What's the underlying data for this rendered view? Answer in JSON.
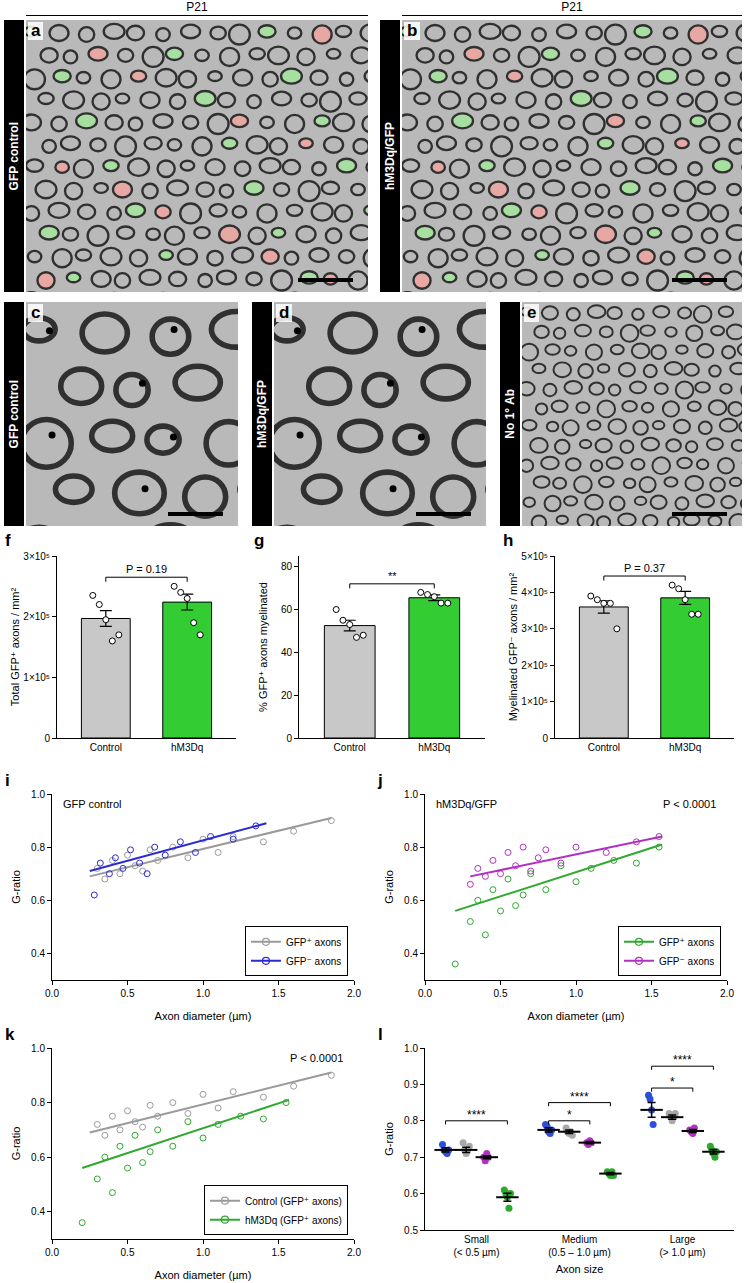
{
  "images": [
    {
      "label": "a",
      "header": "P21",
      "condition": "GFP control"
    },
    {
      "label": "b",
      "header": "P21",
      "condition": "hM3Dq/GFP"
    },
    {
      "label": "c",
      "condition": "GFP control"
    },
    {
      "label": "d",
      "condition": "hM3Dq/GFP"
    },
    {
      "label": "e",
      "condition": "No 1° Ab"
    }
  ],
  "chart_data": [
    {
      "label": "f",
      "type": "bar",
      "categories": [
        "Control",
        "hM3Dq"
      ],
      "values": [
        197000,
        224000
      ],
      "errors": [
        13000,
        13000
      ],
      "colors": [
        "#c8c8c8",
        "#33cc33"
      ],
      "points": [
        [
          235000,
          220000,
          195000,
          160000,
          170000
        ],
        [
          250000,
          240000,
          230000,
          190000,
          170000
        ]
      ],
      "y_label": "Total GFP⁺ axons / mm²",
      "ylim": [
        0,
        300000
      ],
      "yticks": [
        0,
        {
          "value": 100000,
          "label": "1×10⁵"
        },
        {
          "value": 200000,
          "label": "2×10⁵"
        },
        {
          "value": 300000,
          "label": "3×10⁵"
        }
      ],
      "annotations": [
        {
          "text": "P = 0.19",
          "y": 265000
        }
      ],
      "grid": false
    },
    {
      "label": "g",
      "type": "bar",
      "categories": [
        "Control",
        "hM3Dq"
      ],
      "values": [
        52.5,
        65.5
      ],
      "errors": [
        2.5,
        1.3
      ],
      "colors": [
        "#c8c8c8",
        "#33cc33"
      ],
      "points": [
        [
          60,
          55,
          53,
          47,
          48
        ],
        [
          68,
          67,
          66,
          63,
          63
        ]
      ],
      "y_label": "% GFP⁺ axons myelinated",
      "ylim": [
        0,
        85
      ],
      "yticks": [
        0,
        20,
        40,
        60,
        80
      ],
      "annotations": [
        {
          "text": "**",
          "y": 72
        }
      ],
      "grid": false
    },
    {
      "label": "h",
      "type": "bar",
      "categories": [
        "Control",
        "hM3Dq"
      ],
      "values": [
        360000,
        385000
      ],
      "errors": [
        17000,
        18000
      ],
      "colors": [
        "#c8c8c8",
        "#33cc33"
      ],
      "points": [
        [
          390000,
          380000,
          370000,
          370000,
          300000
        ],
        [
          420000,
          410000,
          380000,
          340000,
          340000
        ]
      ],
      "y_label": "Myelinated GFP⁻ axons / mm²",
      "ylim": [
        0,
        500000
      ],
      "yticks": [
        0,
        {
          "value": 100000,
          "label": "1×10⁵"
        },
        {
          "value": 200000,
          "label": "2×10⁵"
        },
        {
          "value": 300000,
          "label": "3×10⁵"
        },
        {
          "value": 400000,
          "label": "4×10⁵"
        },
        {
          "value": 500000,
          "label": "5×10⁵"
        }
      ],
      "annotations": [
        {
          "text": "P = 0.37",
          "y": 445000
        }
      ],
      "grid": false
    },
    {
      "label": "i",
      "type": "scatter",
      "title": "GFP control",
      "legend": "lower right",
      "marker": "circle-open",
      "x_label": "Axon diameter (µm)",
      "y_label": "G-ratio",
      "xlim": [
        0,
        2
      ],
      "xticks": [
        {
          "value": 0,
          "label": "0.0"
        },
        0.5,
        {
          "value": 1,
          "label": "1.0"
        },
        1.5,
        {
          "value": 2,
          "label": "2.0"
        }
      ],
      "ylim": [
        0.3,
        1.0
      ],
      "yticks": [
        0.4,
        0.6,
        0.8,
        {
          "value": 1,
          "label": "1.0"
        }
      ],
      "series": [
        {
          "name": "GFP⁺ axons",
          "color": "#9a9a9a",
          "x": [
            0.3,
            0.35,
            0.4,
            0.45,
            0.5,
            0.55,
            0.6,
            0.65,
            0.7,
            0.8,
            0.9,
            1.0,
            1.1,
            1.2,
            1.4,
            1.6,
            1.85
          ],
          "y": [
            0.72,
            0.68,
            0.75,
            0.7,
            0.77,
            0.73,
            0.71,
            0.79,
            0.75,
            0.8,
            0.76,
            0.83,
            0.78,
            0.84,
            0.82,
            0.86,
            0.9
          ],
          "fit": {
            "x": [
              0.25,
              1.85
            ],
            "y": [
              0.69,
              0.91
            ]
          }
        },
        {
          "name": "GFP⁻ axons",
          "color": "#2b2bd0",
          "x": [
            0.28,
            0.32,
            0.38,
            0.42,
            0.47,
            0.52,
            0.58,
            0.63,
            0.68,
            0.75,
            0.85,
            0.95,
            1.05,
            1.2,
            1.35
          ],
          "y": [
            0.62,
            0.74,
            0.7,
            0.76,
            0.72,
            0.79,
            0.74,
            0.7,
            0.8,
            0.77,
            0.82,
            0.78,
            0.84,
            0.83,
            0.88
          ],
          "fit": {
            "x": [
              0.25,
              1.42
            ],
            "y": [
              0.71,
              0.89
            ]
          }
        }
      ],
      "grid": false
    },
    {
      "label": "j",
      "type": "scatter",
      "title": "hM3Dq/GFP",
      "annotation": "P < 0.0001",
      "legend": "lower right",
      "marker": "circle-open",
      "x_label": "Axon diameter (µm)",
      "y_label": "G-ratio",
      "xlim": [
        0,
        2
      ],
      "xticks": [
        {
          "value": 0,
          "label": "0.0"
        },
        0.5,
        {
          "value": 1,
          "label": "1.0"
        },
        1.5,
        {
          "value": 2,
          "label": "2.0"
        }
      ],
      "ylim": [
        0.3,
        1.0
      ],
      "yticks": [
        0.4,
        0.6,
        0.8,
        {
          "value": 1,
          "label": "1.0"
        }
      ],
      "series": [
        {
          "name": "GFP⁺ axons",
          "color": "#2ea82e",
          "x": [
            0.2,
            0.3,
            0.35,
            0.4,
            0.45,
            0.5,
            0.55,
            0.6,
            0.65,
            0.7,
            0.8,
            0.9,
            1.0,
            1.1,
            1.25,
            1.4,
            1.55
          ],
          "y": [
            0.36,
            0.52,
            0.6,
            0.47,
            0.64,
            0.56,
            0.68,
            0.58,
            0.62,
            0.7,
            0.64,
            0.73,
            0.67,
            0.72,
            0.75,
            0.74,
            0.8
          ],
          "fit": {
            "x": [
              0.2,
              1.57
            ],
            "y": [
              0.56,
              0.81
            ]
          }
        },
        {
          "name": "GFP⁻ axons",
          "color": "#b030c0",
          "x": [
            0.3,
            0.35,
            0.4,
            0.45,
            0.5,
            0.55,
            0.6,
            0.65,
            0.7,
            0.75,
            0.8,
            0.9,
            1.0,
            1.2,
            1.4,
            1.55
          ],
          "y": [
            0.66,
            0.72,
            0.69,
            0.75,
            0.7,
            0.78,
            0.73,
            0.8,
            0.71,
            0.76,
            0.79,
            0.74,
            0.8,
            0.78,
            0.82,
            0.84
          ],
          "fit": {
            "x": [
              0.3,
              1.57
            ],
            "y": [
              0.69,
              0.84
            ]
          }
        }
      ],
      "grid": false
    },
    {
      "label": "k",
      "type": "scatter",
      "annotation": "P < 0.0001",
      "legend": "lower right",
      "marker": "circle-open",
      "x_label": "Axon diameter (µm)",
      "y_label": "G-ratio",
      "xlim": [
        0,
        2
      ],
      "xticks": [
        {
          "value": 0,
          "label": "0.0"
        },
        0.5,
        {
          "value": 1,
          "label": "1.0"
        },
        1.5,
        {
          "value": 2,
          "label": "2.0"
        }
      ],
      "ylim": [
        0.3,
        1.0
      ],
      "yticks": [
        0.4,
        0.6,
        0.8,
        {
          "value": 1,
          "label": "1.0"
        }
      ],
      "series": [
        {
          "name": "Control (GFP⁺ axons)",
          "color": "#9a9a9a",
          "x": [
            0.3,
            0.35,
            0.4,
            0.45,
            0.5,
            0.55,
            0.6,
            0.65,
            0.7,
            0.8,
            0.9,
            1.0,
            1.1,
            1.2,
            1.4,
            1.6,
            1.85
          ],
          "y": [
            0.72,
            0.68,
            0.75,
            0.7,
            0.77,
            0.73,
            0.71,
            0.79,
            0.75,
            0.8,
            0.76,
            0.83,
            0.78,
            0.84,
            0.82,
            0.86,
            0.9
          ],
          "fit": {
            "x": [
              0.25,
              1.85
            ],
            "y": [
              0.69,
              0.91
            ]
          }
        },
        {
          "name": "hM3Dq (GFP⁺ axons)",
          "color": "#2ea82e",
          "x": [
            0.2,
            0.3,
            0.35,
            0.4,
            0.45,
            0.5,
            0.55,
            0.6,
            0.65,
            0.7,
            0.8,
            0.9,
            1.0,
            1.1,
            1.25,
            1.4,
            1.55
          ],
          "y": [
            0.36,
            0.52,
            0.6,
            0.47,
            0.64,
            0.56,
            0.68,
            0.58,
            0.62,
            0.7,
            0.64,
            0.73,
            0.67,
            0.72,
            0.75,
            0.74,
            0.8
          ],
          "fit": {
            "x": [
              0.2,
              1.57
            ],
            "y": [
              0.56,
              0.81
            ]
          }
        }
      ],
      "grid": false
    },
    {
      "label": "l",
      "type": "dot",
      "x_label": "Axon size",
      "y_label": "G-ratio",
      "categories": [
        "Small (< 0.5 µm)",
        "Medium (0.5 – 1.0 µm)",
        "Large (> 1.0 µm)"
      ],
      "ylim": [
        0.5,
        1.0
      ],
      "yticks": [
        0.5,
        0.6,
        0.7,
        0.8,
        0.9,
        {
          "value": 1,
          "label": "1.0"
        }
      ],
      "series": [
        {
          "color": "#2b4fd8",
          "values": [
            0.72,
            0.775,
            0.83
          ],
          "errors": [
            0.006,
            0.006,
            0.02
          ],
          "points": [
            [
              0.735,
              0.72,
              0.715,
              0.71,
              0.72
            ],
            [
              0.79,
              0.785,
              0.77,
              0.765,
              0.775
            ],
            [
              0.87,
              0.86,
              0.83,
              0.79
            ]
          ]
        },
        {
          "color": "#a8a8a8",
          "values": [
            0.72,
            0.77,
            0.81
          ],
          "errors": [
            0.007,
            0.005,
            0.006
          ],
          "points": [
            [
              0.74,
              0.72,
              0.71,
              0.72,
              0.73
            ],
            [
              0.78,
              0.77,
              0.765,
              0.77,
              0.76
            ],
            [
              0.82,
              0.81,
              0.8,
              0.81,
              0.82
            ]
          ]
        },
        {
          "color": "#b030c0",
          "values": [
            0.7,
            0.74,
            0.772
          ],
          "errors": [
            0.004,
            0.003,
            0.004
          ],
          "points": [
            [
              0.7,
              0.69,
              0.71,
              0.7
            ],
            [
              0.74,
              0.735,
              0.745,
              0.74
            ],
            [
              0.775,
              0.77,
              0.765,
              0.78
            ]
          ]
        },
        {
          "color": "#2ea82e",
          "values": [
            0.59,
            0.655,
            0.715
          ],
          "errors": [
            0.011,
            0.003,
            0.006
          ],
          "points": [
            [
              0.61,
              0.6,
              0.59,
              0.56,
              0.6
            ],
            [
              0.66,
              0.655,
              0.65,
              0.66,
              0.65
            ],
            [
              0.73,
              0.72,
              0.71,
              0.7,
              0.715
            ]
          ]
        }
      ],
      "annotations": [
        {
          "category": "Small (< 0.5 µm)",
          "text": "****",
          "y": 0.8,
          "between": [
            0,
            3
          ]
        },
        {
          "category": "Medium (0.5 – 1.0 µm)",
          "text": "*",
          "y": 0.8,
          "between": [
            0,
            2
          ]
        },
        {
          "category": "Medium (0.5 – 1.0 µm)",
          "text": "****",
          "y": 0.85,
          "between": [
            0,
            3
          ]
        },
        {
          "category": "Large (> 1.0 µm)",
          "text": "*",
          "y": 0.89,
          "between": [
            0,
            2
          ]
        },
        {
          "category": "Large (> 1.0 µm)",
          "text": "****",
          "y": 0.95,
          "between": [
            0,
            3
          ]
        }
      ],
      "grid": false
    }
  ]
}
